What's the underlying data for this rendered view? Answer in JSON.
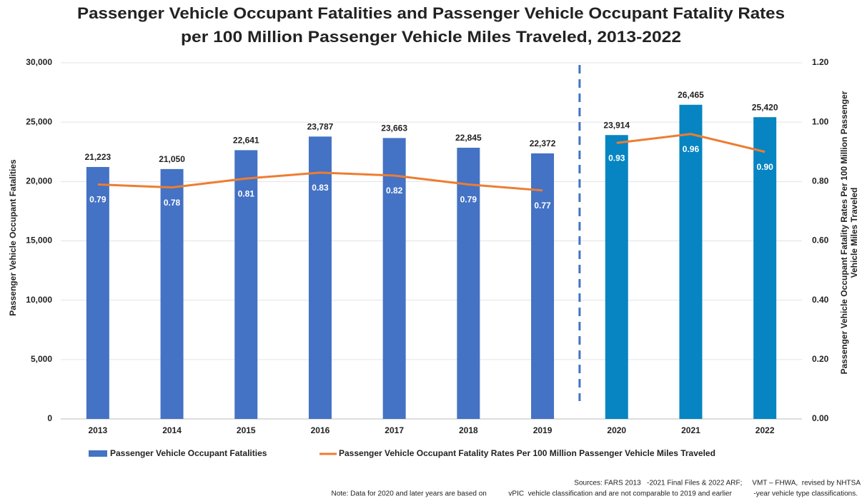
{
  "chart_data": {
    "type": "bar",
    "title": [
      "Passenger Vehicle Occupant Fatalities and Passenger Vehicle Occupant Fatality Rates",
      "per 100 Million Passenger Vehicle Miles Traveled, 2013-2022"
    ],
    "ylabel": "Passenger Vehicle Occupant Fatalities",
    "y2label": [
      "Passenger Vehicle Occupant Fatality Rates Per 100 Million Passenger",
      "Vehicle Miles Traveled"
    ],
    "categories": [
      "2013",
      "2014",
      "2015",
      "2016",
      "2017",
      "2018",
      "2019",
      "2020",
      "2021",
      "2022"
    ],
    "series": [
      {
        "name": "Passenger Vehicle Occupant Fatalities",
        "type": "bar",
        "color": "#4472c4",
        "colors": [
          "#4472c4",
          "#4472c4",
          "#4472c4",
          "#4472c4",
          "#4472c4",
          "#4472c4",
          "#4472c4",
          "#0685c2",
          "#0685c2",
          "#0685c2"
        ],
        "values": [
          21223,
          21050,
          22641,
          23787,
          23663,
          22845,
          22372,
          23914,
          26465,
          25420
        ],
        "value_labels": [
          "21,223",
          "21,050",
          "22,641",
          "23,787",
          "23,663",
          "22,845",
          "22,372",
          "23,914",
          "26,465",
          "25,420"
        ]
      },
      {
        "name": "Passenger Vehicle Occupant Fatality Rates Per 100 Million Passenger Vehicle Miles Traveled",
        "type": "line",
        "axis": "y2",
        "color": "#ed7d31",
        "values": [
          0.79,
          0.78,
          0.81,
          0.83,
          0.82,
          0.79,
          0.77,
          0.93,
          0.96,
          0.9
        ],
        "value_labels": [
          "0.79",
          "0.78",
          "0.81",
          "0.83",
          "0.82",
          "0.79",
          "0.77",
          "0.93",
          "0.96",
          "0.90"
        ]
      }
    ],
    "ylim": [
      0,
      30000
    ],
    "yticks": [
      0,
      {
        "value": 5000,
        "label": "5,000"
      },
      {
        "value": 10000,
        "label": "10,000"
      },
      {
        "value": 15000,
        "label": "15,000"
      },
      {
        "value": 20000,
        "label": "20,000"
      },
      {
        "value": 25000,
        "label": "25,000"
      },
      {
        "value": 30000,
        "label": "30,000"
      }
    ],
    "y2lim": [
      0,
      1.2
    ],
    "y2ticks": [
      {
        "value": 0,
        "label": "0.00"
      },
      {
        "value": 0.2,
        "label": "0.20"
      },
      {
        "value": 0.4,
        "label": "0.40"
      },
      {
        "value": 0.6,
        "label": "0.60"
      },
      {
        "value": 0.8,
        "label": "0.80"
      },
      {
        "value": 1.0,
        "label": "1.00"
      },
      {
        "value": 1.2,
        "label": "1.20"
      }
    ],
    "grid": true,
    "legend": "bottom",
    "notes": [
      "Sources: FARS 2013   -2021 Final Files & 2022 ARF;     VMT – FHWA,  revised by NHTSA",
      "Note: Data for 2020 and later years are based on           vPIC  vehicle classification and are not comparable to 2019 and earlier           -year vehicle type classifications."
    ]
  }
}
